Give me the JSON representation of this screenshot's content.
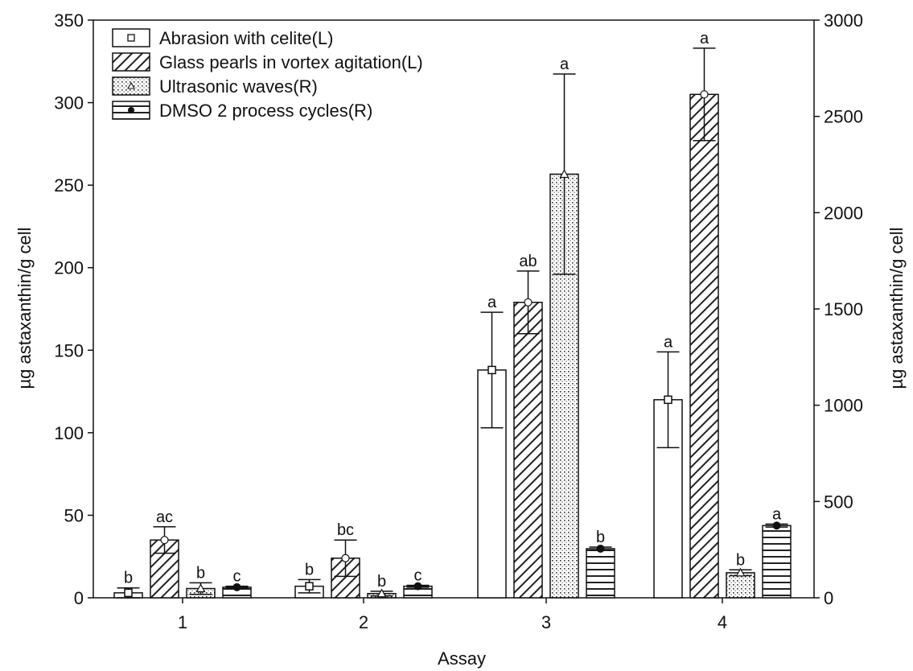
{
  "chart_data": {
    "type": "bar",
    "xlabel": "Assay",
    "ylabel_left": "µg astaxanthin/g cell",
    "ylabel_right": "µg astaxanthin/g cell",
    "ylim_left": [
      0,
      350
    ],
    "ylim_right": [
      0,
      3000
    ],
    "yticks_left": [
      "0",
      "50",
      "100",
      "150",
      "200",
      "250",
      "300",
      "350"
    ],
    "yticks_right": [
      "0",
      "500",
      "1000",
      "1500",
      "2000",
      "2500",
      "3000"
    ],
    "categories": [
      "1",
      "2",
      "3",
      "4"
    ],
    "grid": false,
    "legend_position": "top-left",
    "series": [
      {
        "name": "Abrasion with celite(L)",
        "axis": "left",
        "pattern": "open",
        "values": [
          3,
          7,
          138,
          120
        ],
        "errors": [
          3,
          4,
          35,
          29
        ],
        "labels": [
          "b",
          "b",
          "a",
          "a"
        ]
      },
      {
        "name": "Glass pearls in vortex agitation(L)",
        "axis": "left",
        "pattern": "hatch",
        "values": [
          35,
          24,
          179,
          305
        ],
        "errors": [
          8,
          11,
          19,
          28
        ],
        "labels": [
          "ac",
          "bc",
          "ab",
          "a"
        ]
      },
      {
        "name": "Ultrasonic waves(R)",
        "axis": "right",
        "pattern": "dots",
        "values": [
          48,
          22,
          2200,
          130
        ],
        "errors": [
          30,
          12,
          520,
          15
        ],
        "labels": [
          "b",
          "b",
          "a",
          "b"
        ]
      },
      {
        "name": "DMSO 2 process cycles(R)",
        "axis": "right",
        "pattern": "hlines",
        "values": [
          55,
          60,
          255,
          375
        ],
        "errors": [
          5,
          5,
          8,
          8
        ],
        "labels": [
          "c",
          "c",
          "b",
          "a"
        ]
      }
    ]
  }
}
